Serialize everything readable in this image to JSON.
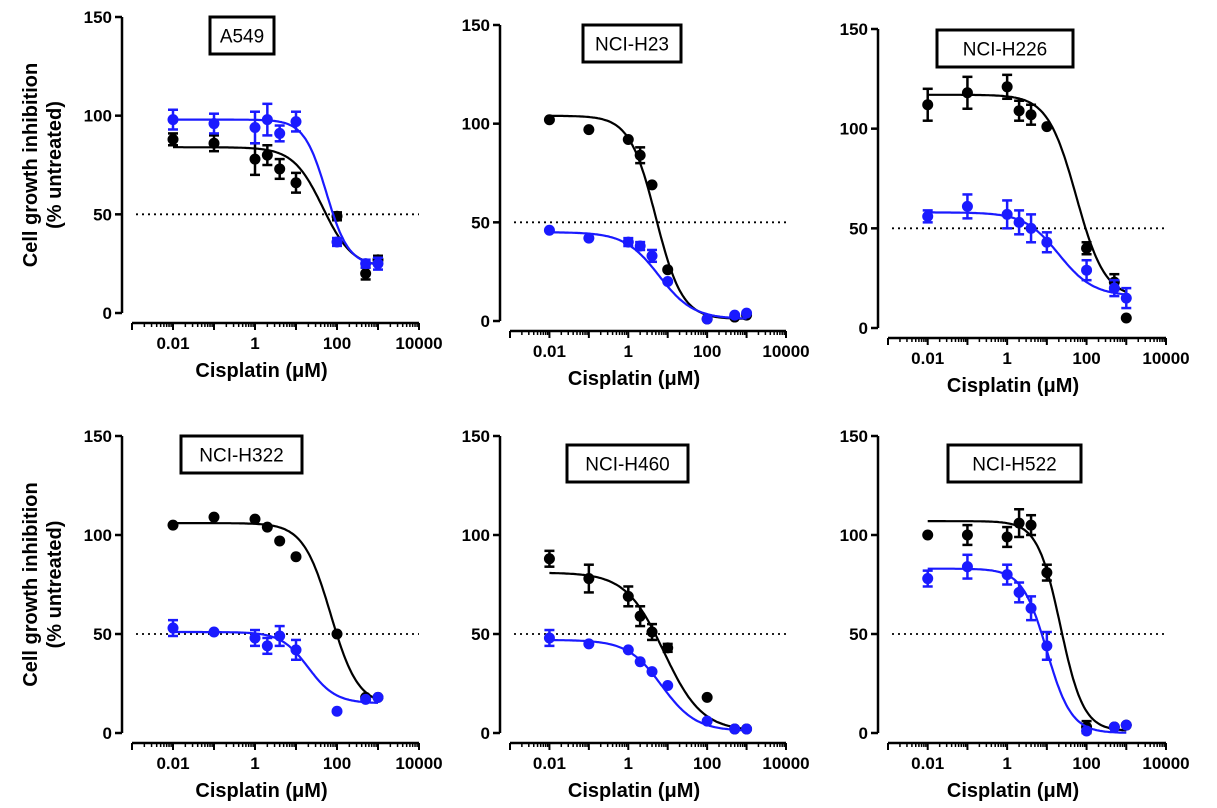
{
  "colors": {
    "series_black": "#000000",
    "series_blue": "#1a1aff",
    "reference": "#000000"
  },
  "chart_data": [
    {
      "type": "scatter",
      "title": "A549",
      "xlabel": "Cisplatin (μM)",
      "ylabel": [
        "Cell growth inhibition",
        "(% untreated)"
      ],
      "xscale": "log",
      "xlim": [
        0.001,
        10000
      ],
      "ylim": [
        0,
        150
      ],
      "xticks": [
        0.01,
        1,
        100,
        10000
      ],
      "xtick_labels": [
        "0.01",
        "1",
        "100",
        "10000"
      ],
      "yticks": [
        0,
        50,
        100,
        150
      ],
      "ytick_labels": [
        "0",
        "50",
        "100",
        "150"
      ],
      "reference_line_y": 50,
      "x": [
        0.01,
        0.1,
        1,
        2,
        4,
        10,
        100,
        500,
        1000
      ],
      "series": [
        {
          "color": "black",
          "values": [
            88,
            86,
            78,
            80,
            73,
            66,
            49,
            20,
            27
          ],
          "errors": [
            3,
            4,
            8,
            5,
            5,
            5,
            2,
            3,
            2
          ],
          "fit": {
            "top": 84,
            "bottom": 23,
            "ic50": 45,
            "hill": 1.2
          }
        },
        {
          "color": "blue",
          "values": [
            98,
            96,
            94,
            98,
            91,
            97,
            36,
            25,
            25
          ],
          "errors": [
            5,
            5,
            8,
            8,
            4,
            5,
            2,
            2,
            3
          ],
          "fit": {
            "top": 98,
            "bottom": 24,
            "ic50": 55,
            "hill": 1.6
          }
        }
      ]
    },
    {
      "type": "scatter",
      "title": "NCI-H23",
      "xlabel": "Cisplatin (μM)",
      "xscale": "log",
      "xlim": [
        0.001,
        10000
      ],
      "ylim": [
        0,
        150
      ],
      "xticks": [
        0.01,
        1,
        100,
        10000
      ],
      "xtick_labels": [
        "0.01",
        "1",
        "100",
        "10000"
      ],
      "yticks": [
        0,
        50,
        100,
        150
      ],
      "ytick_labels": [
        "0",
        "50",
        "100",
        "150"
      ],
      "reference_line_y": 50,
      "x": [
        0.01,
        0.1,
        1,
        2,
        4,
        10,
        100,
        500,
        1000
      ],
      "series": [
        {
          "color": "black",
          "values": [
            102,
            97,
            92,
            84,
            69,
            26,
            1,
            2,
            3
          ],
          "errors": [
            1,
            1,
            1,
            4,
            1,
            1,
            1,
            1,
            1
          ],
          "fit": {
            "top": 104,
            "bottom": 1,
            "ic50": 5,
            "hill": 1.3
          }
        },
        {
          "color": "blue",
          "values": [
            46,
            42,
            40,
            38,
            33,
            20,
            1,
            3,
            4
          ],
          "errors": [
            1,
            1,
            2,
            2,
            3,
            1,
            1,
            1,
            1
          ],
          "fit": {
            "top": 45,
            "bottom": 1,
            "ic50": 6,
            "hill": 1.0
          }
        }
      ]
    },
    {
      "type": "scatter",
      "title": "NCI-H226",
      "xlabel": "Cisplatin (μM)",
      "xscale": "log",
      "xlim": [
        0.001,
        10000
      ],
      "ylim": [
        0,
        150
      ],
      "xticks": [
        0.01,
        1,
        100,
        10000
      ],
      "xtick_labels": [
        "0.01",
        "1",
        "100",
        "10000"
      ],
      "yticks": [
        0,
        50,
        100,
        150
      ],
      "ytick_labels": [
        "0",
        "50",
        "100",
        "150"
      ],
      "reference_line_y": 50,
      "x": [
        0.01,
        0.1,
        1,
        2,
        4,
        10,
        100,
        500,
        1000
      ],
      "series": [
        {
          "color": "black",
          "values": [
            112,
            118,
            121,
            109,
            107,
            101,
            40,
            23,
            5
          ],
          "errors": [
            8,
            8,
            6,
            5,
            5,
            1,
            3,
            4,
            1
          ],
          "fit": {
            "top": 117,
            "bottom": 15,
            "ic50": 55,
            "hill": 1.2
          }
        },
        {
          "color": "blue",
          "values": [
            56,
            61,
            57,
            53,
            50,
            43,
            29,
            20,
            15
          ],
          "errors": [
            3,
            6,
            7,
            6,
            7,
            5,
            5,
            4,
            5
          ],
          "fit": {
            "top": 58,
            "bottom": 16,
            "ic50": 20,
            "hill": 1.0
          }
        }
      ]
    },
    {
      "type": "scatter",
      "title": "NCI-H322",
      "xlabel": "Cisplatin (μM)",
      "ylabel": [
        "Cell growth inhibition",
        "(% untreated)"
      ],
      "xscale": "log",
      "xlim": [
        0.001,
        10000
      ],
      "ylim": [
        0,
        150
      ],
      "xticks": [
        0.01,
        1,
        100,
        10000
      ],
      "xtick_labels": [
        "0.01",
        "1",
        "100",
        "10000"
      ],
      "yticks": [
        0,
        50,
        100,
        150
      ],
      "ytick_labels": [
        "0",
        "50",
        "100",
        "150"
      ],
      "reference_line_y": 50,
      "x": [
        0.01,
        0.1,
        1,
        2,
        4,
        10,
        100,
        500,
        1000
      ],
      "series": [
        {
          "color": "black",
          "values": [
            105,
            109,
            108,
            104,
            97,
            89,
            50,
            18,
            18
          ],
          "errors": [
            1,
            1,
            1,
            1,
            1,
            1,
            1,
            1,
            1
          ],
          "fit": {
            "top": 106,
            "bottom": 14,
            "ic50": 70,
            "hill": 1.3
          }
        },
        {
          "color": "blue",
          "values": [
            53,
            51,
            48,
            44,
            49,
            42,
            11,
            17,
            18
          ],
          "errors": [
            4,
            1,
            4,
            4,
            5,
            5,
            1,
            1,
            1
          ],
          "fit": {
            "top": 51,
            "bottom": 15,
            "ic50": 20,
            "hill": 1.3
          }
        }
      ]
    },
    {
      "type": "scatter",
      "title": "NCI-H460",
      "xlabel": "Cisplatin (μM)",
      "xscale": "log",
      "xlim": [
        0.001,
        10000
      ],
      "ylim": [
        0,
        150
      ],
      "xticks": [
        0.01,
        1,
        100,
        10000
      ],
      "xtick_labels": [
        "0.01",
        "1",
        "100",
        "10000"
      ],
      "yticks": [
        0,
        50,
        100,
        150
      ],
      "ytick_labels": [
        "0",
        "50",
        "100",
        "150"
      ],
      "reference_line_y": 50,
      "x": [
        0.01,
        0.1,
        1,
        2,
        4,
        10,
        100,
        500,
        1000
      ],
      "series": [
        {
          "color": "black",
          "values": [
            88,
            78,
            69,
            59,
            51,
            43,
            18,
            2,
            2
          ],
          "errors": [
            4,
            7,
            5,
            5,
            4,
            2,
            1,
            1,
            1
          ],
          "fit": {
            "top": 81,
            "bottom": 1,
            "ic50": 8,
            "hill": 0.9
          }
        },
        {
          "color": "blue",
          "values": [
            48,
            45,
            42,
            36,
            31,
            24,
            6,
            2,
            2
          ],
          "errors": [
            4,
            1,
            1,
            1,
            1,
            1,
            1,
            1,
            1
          ],
          "fit": {
            "top": 47,
            "bottom": 1,
            "ic50": 7,
            "hill": 1.0
          }
        }
      ]
    },
    {
      "type": "scatter",
      "title": "NCI-H522",
      "xlabel": "Cisplatin (μM)",
      "xscale": "log",
      "xlim": [
        0.001,
        10000
      ],
      "ylim": [
        0,
        150
      ],
      "xticks": [
        0.01,
        1,
        100,
        10000
      ],
      "xtick_labels": [
        "0.01",
        "1",
        "100",
        "10000"
      ],
      "yticks": [
        0,
        50,
        100,
        150
      ],
      "ytick_labels": [
        "0",
        "50",
        "100",
        "150"
      ],
      "reference_line_y": 50,
      "x": [
        0.01,
        0.1,
        1,
        2,
        4,
        10,
        100,
        500,
        1000
      ],
      "series": [
        {
          "color": "black",
          "values": [
            100,
            100,
            99,
            106,
            105,
            81,
            3,
            3,
            4
          ],
          "errors": [
            1,
            5,
            5,
            7,
            5,
            4,
            3,
            1,
            1
          ],
          "fit": {
            "top": 107,
            "bottom": 1,
            "ic50": 22,
            "hill": 1.5
          }
        },
        {
          "color": "blue",
          "values": [
            78,
            84,
            80,
            71,
            63,
            44,
            1,
            3,
            4
          ],
          "errors": [
            4,
            6,
            5,
            5,
            6,
            7,
            1,
            1,
            1
          ],
          "fit": {
            "top": 83,
            "bottom": 0,
            "ic50": 10,
            "hill": 1.4
          }
        }
      ]
    }
  ]
}
